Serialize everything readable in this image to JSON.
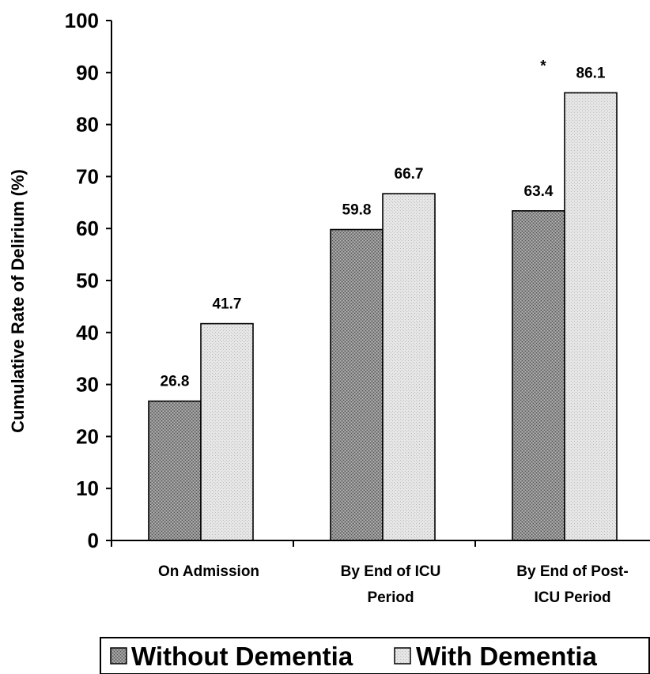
{
  "chart_data": {
    "type": "bar",
    "title": "",
    "xlabel": "",
    "ylabel": "Cumulative Rate of Delirium (%)",
    "ylim": [
      0,
      100
    ],
    "yticks": [
      0,
      10,
      20,
      30,
      40,
      50,
      60,
      70,
      80,
      90,
      100
    ],
    "grid": false,
    "legend_position": "bottom",
    "categories": [
      [
        "On Admission"
      ],
      [
        "By End of ICU",
        "Period"
      ],
      [
        "By End of Post-",
        "ICU Period"
      ]
    ],
    "series": [
      {
        "name": "Without Dementia",
        "values": [
          26.8,
          59.8,
          63.4
        ],
        "labels": [
          "26.8",
          "59.8",
          "63.4"
        ],
        "color": "#9a9a9a",
        "pattern": "dark-stipple"
      },
      {
        "name": "With Dementia",
        "values": [
          41.7,
          66.7,
          86.1
        ],
        "labels": [
          "41.7",
          "66.7",
          "86.1"
        ],
        "color": "#e2e2e2",
        "pattern": "light-stipple"
      }
    ],
    "annotations": [
      {
        "text": "*",
        "category_index": 2,
        "series_index": 0
      }
    ]
  }
}
